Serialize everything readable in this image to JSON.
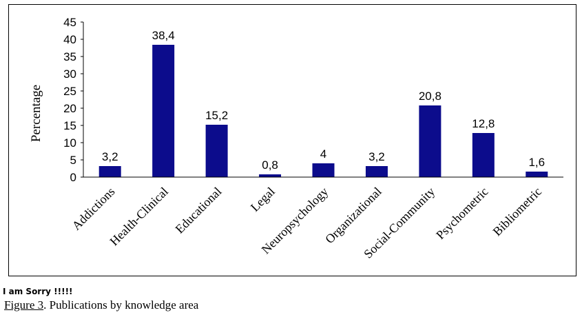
{
  "chart_data": {
    "type": "bar",
    "categories": [
      "Addictions",
      "Health-Clinical",
      "Educational",
      "Legal",
      "Neuropsychology",
      "Organizational",
      "Social-Community",
      "Psychometric",
      "Bibliometric"
    ],
    "values": [
      3.2,
      38.4,
      15.2,
      0.8,
      4,
      3.2,
      20.8,
      12.8,
      1.6
    ],
    "value_labels": [
      "3,2",
      "38,4",
      "15,2",
      "0,8",
      "4",
      "3,2",
      "20,8",
      "12,8",
      "1,6"
    ],
    "ylabel": "Percentage",
    "ylim": [
      0,
      45
    ],
    "yticks": [
      0,
      5,
      10,
      15,
      20,
      25,
      30,
      35,
      40,
      45
    ],
    "bar_color": "#0c0c8c",
    "grid": false,
    "legend": "none"
  },
  "note": "I am Sorry !!!!!",
  "caption": {
    "label": "Figure 3",
    "text": ". Publications by knowledge area"
  }
}
